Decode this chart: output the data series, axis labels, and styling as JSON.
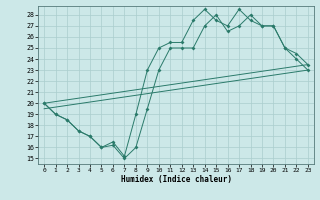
{
  "title": "",
  "xlabel": "Humidex (Indice chaleur)",
  "bg_color": "#cce8e8",
  "line_color": "#2a7a6a",
  "grid_color": "#aacece",
  "xlim": [
    -0.5,
    23.5
  ],
  "ylim": [
    14.5,
    28.8
  ],
  "yticks": [
    15,
    16,
    17,
    18,
    19,
    20,
    21,
    22,
    23,
    24,
    25,
    26,
    27,
    28
  ],
  "xticks": [
    0,
    1,
    2,
    3,
    4,
    5,
    6,
    7,
    8,
    9,
    10,
    11,
    12,
    13,
    14,
    15,
    16,
    17,
    18,
    19,
    20,
    21,
    22,
    23
  ],
  "curve1_x": [
    0,
    1,
    2,
    3,
    4,
    5,
    6,
    7,
    8,
    9,
    10,
    11,
    12,
    13,
    14,
    15,
    16,
    17,
    18,
    19,
    20,
    21,
    22,
    23
  ],
  "curve1_y": [
    20,
    19,
    18.5,
    17.5,
    17,
    16,
    16.2,
    15,
    16,
    19.5,
    23,
    25,
    25,
    25,
    27,
    28,
    26.5,
    27,
    28,
    27,
    27,
    25,
    24,
    23
  ],
  "curve2_x": [
    0,
    1,
    2,
    3,
    4,
    5,
    6,
    7,
    8,
    9,
    10,
    11,
    12,
    13,
    14,
    15,
    16,
    17,
    18,
    19,
    20,
    21,
    22,
    23
  ],
  "curve2_y": [
    20,
    19,
    18.5,
    17.5,
    17,
    16,
    16.5,
    15.2,
    19,
    23,
    25,
    25.5,
    25.5,
    27.5,
    28.5,
    27.5,
    27,
    28.5,
    27.5,
    27,
    27,
    25,
    24.5,
    23.5
  ],
  "line1_x": [
    0,
    23
  ],
  "line1_y": [
    19.5,
    23.0
  ],
  "line2_x": [
    0,
    23
  ],
  "line2_y": [
    20.0,
    23.5
  ],
  "figsize": [
    3.2,
    2.0
  ],
  "dpi": 100
}
